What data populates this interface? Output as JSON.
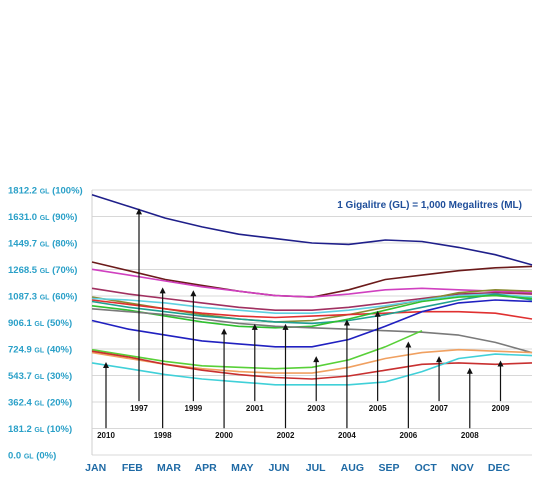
{
  "chart_data": {
    "type": "line",
    "note": "1 Gigalitre (GL) = 1,000 Megalitres (ML)",
    "x_labels": [
      "JAN",
      "FEB",
      "MAR",
      "APR",
      "MAY",
      "JUN",
      "JUL",
      "AUG",
      "SEP",
      "OCT",
      "NOV",
      "DEC"
    ],
    "y_ticks": [
      {
        "value": 0,
        "gl": "0.0",
        "unit": "GL",
        "pct": "(0%)"
      },
      {
        "value": 181.2,
        "gl": "181.2",
        "unit": "GL",
        "pct": "(10%)"
      },
      {
        "value": 362.4,
        "gl": "362.4",
        "unit": "GL",
        "pct": "(20%)"
      },
      {
        "value": 543.7,
        "gl": "543.7",
        "unit": "GL",
        "pct": "(30%)"
      },
      {
        "value": 724.9,
        "gl": "724.9",
        "unit": "GL",
        "pct": "(40%)"
      },
      {
        "value": 906.1,
        "gl": "906.1",
        "unit": "GL",
        "pct": "(50%)"
      },
      {
        "value": 1087.3,
        "gl": "1087.3",
        "unit": "GL",
        "pct": "(60%)"
      },
      {
        "value": 1268.5,
        "gl": "1268.5",
        "unit": "GL",
        "pct": "(70%)"
      },
      {
        "value": 1449.7,
        "gl": "1449.7",
        "unit": "GL",
        "pct": "(80%)"
      },
      {
        "value": 1631.0,
        "gl": "1631.0",
        "unit": "GL",
        "pct": "(90%)"
      },
      {
        "value": 1812.2,
        "gl": "1812.2",
        "unit": "GL",
        "pct": "(100%)"
      }
    ],
    "ylim": [
      0,
      1812.2
    ],
    "xlim": [
      0,
      12
    ],
    "series": [
      {
        "color": "#1f1f8a",
        "points": [
          [
            0,
            1780
          ],
          [
            1,
            1700
          ],
          [
            2,
            1620
          ],
          [
            3,
            1560
          ],
          [
            4,
            1510
          ],
          [
            5,
            1480
          ],
          [
            6,
            1450
          ],
          [
            7,
            1440
          ],
          [
            8,
            1470
          ],
          [
            9,
            1460
          ],
          [
            10,
            1420
          ],
          [
            11,
            1370
          ],
          [
            12,
            1300
          ]
        ]
      },
      {
        "color": "#6b1a1a",
        "points": [
          [
            0,
            1320
          ],
          [
            1,
            1260
          ],
          [
            2,
            1200
          ],
          [
            3,
            1160
          ],
          [
            4,
            1120
          ],
          [
            5,
            1090
          ],
          [
            6,
            1080
          ],
          [
            7,
            1130
          ],
          [
            8,
            1200
          ],
          [
            9,
            1230
          ],
          [
            10,
            1260
          ],
          [
            11,
            1280
          ],
          [
            12,
            1290
          ]
        ]
      },
      {
        "color": "#d040c0",
        "points": [
          [
            0,
            1270
          ],
          [
            1,
            1230
          ],
          [
            2,
            1190
          ],
          [
            3,
            1150
          ],
          [
            4,
            1120
          ],
          [
            5,
            1090
          ],
          [
            6,
            1080
          ],
          [
            7,
            1100
          ],
          [
            8,
            1130
          ],
          [
            9,
            1140
          ],
          [
            10,
            1130
          ],
          [
            11,
            1120
          ],
          [
            12,
            1110
          ]
        ]
      },
      {
        "color": "#a03060",
        "points": [
          [
            0,
            1140
          ],
          [
            1,
            1100
          ],
          [
            2,
            1070
          ],
          [
            3,
            1040
          ],
          [
            4,
            1010
          ],
          [
            5,
            990
          ],
          [
            6,
            990
          ],
          [
            7,
            1010
          ],
          [
            8,
            1040
          ],
          [
            9,
            1070
          ],
          [
            10,
            1100
          ],
          [
            11,
            1110
          ],
          [
            12,
            1100
          ]
        ]
      },
      {
        "color": "#8a8a30",
        "points": [
          [
            0,
            1080
          ],
          [
            1,
            1040
          ],
          [
            2,
            1000
          ],
          [
            3,
            960
          ],
          [
            4,
            930
          ],
          [
            5,
            910
          ],
          [
            6,
            920
          ],
          [
            7,
            960
          ],
          [
            8,
            1010
          ],
          [
            9,
            1060
          ],
          [
            10,
            1110
          ],
          [
            11,
            1130
          ],
          [
            12,
            1120
          ]
        ]
      },
      {
        "color": "#5fd0e0",
        "points": [
          [
            0,
            1070
          ],
          [
            1,
            1060
          ],
          [
            2,
            1040
          ],
          [
            3,
            1010
          ],
          [
            4,
            990
          ],
          [
            5,
            970
          ],
          [
            6,
            970
          ],
          [
            7,
            990
          ],
          [
            8,
            1020
          ],
          [
            9,
            1060
          ],
          [
            10,
            1090
          ],
          [
            11,
            1100
          ],
          [
            12,
            1080
          ]
        ]
      },
      {
        "color": "#e03030",
        "points": [
          [
            0,
            1060
          ],
          [
            1,
            1030
          ],
          [
            2,
            1000
          ],
          [
            3,
            970
          ],
          [
            4,
            950
          ],
          [
            5,
            940
          ],
          [
            6,
            950
          ],
          [
            7,
            960
          ],
          [
            8,
            970
          ],
          [
            9,
            980
          ],
          [
            10,
            980
          ],
          [
            11,
            970
          ],
          [
            12,
            930
          ]
        ]
      },
      {
        "color": "#20a090",
        "points": [
          [
            0,
            1050
          ],
          [
            1,
            1010
          ],
          [
            2,
            980
          ],
          [
            3,
            950
          ],
          [
            4,
            930
          ],
          [
            5,
            910
          ],
          [
            6,
            900
          ],
          [
            7,
            920
          ],
          [
            8,
            960
          ],
          [
            9,
            1010
          ],
          [
            10,
            1060
          ],
          [
            11,
            1100
          ],
          [
            12,
            1060
          ]
        ]
      },
      {
        "color": "#30c030",
        "points": [
          [
            0,
            1020
          ],
          [
            1,
            990
          ],
          [
            2,
            950
          ],
          [
            3,
            910
          ],
          [
            4,
            880
          ],
          [
            5,
            870
          ],
          [
            6,
            880
          ],
          [
            7,
            930
          ],
          [
            8,
            990
          ],
          [
            9,
            1050
          ],
          [
            10,
            1080
          ],
          [
            11,
            1090
          ],
          [
            12,
            1070
          ]
        ]
      },
      {
        "color": "#7a7a7a",
        "points": [
          [
            0,
            1000
          ],
          [
            1,
            980
          ],
          [
            2,
            960
          ],
          [
            3,
            930
          ],
          [
            4,
            900
          ],
          [
            5,
            880
          ],
          [
            6,
            870
          ],
          [
            7,
            860
          ],
          [
            8,
            850
          ],
          [
            9,
            840
          ],
          [
            10,
            820
          ],
          [
            11,
            770
          ],
          [
            12,
            700
          ]
        ]
      },
      {
        "color": "#2020c0",
        "points": [
          [
            0,
            920
          ],
          [
            1,
            860
          ],
          [
            2,
            820
          ],
          [
            3,
            780
          ],
          [
            4,
            760
          ],
          [
            5,
            740
          ],
          [
            6,
            740
          ],
          [
            7,
            790
          ],
          [
            8,
            880
          ],
          [
            9,
            980
          ],
          [
            10,
            1040
          ],
          [
            11,
            1060
          ],
          [
            12,
            1050
          ]
        ]
      },
      {
        "color": "#f0a060",
        "points": [
          [
            0,
            700
          ],
          [
            1,
            660
          ],
          [
            2,
            620
          ],
          [
            3,
            590
          ],
          [
            4,
            570
          ],
          [
            5,
            560
          ],
          [
            6,
            560
          ],
          [
            7,
            600
          ],
          [
            8,
            660
          ],
          [
            9,
            700
          ],
          [
            10,
            720
          ],
          [
            11,
            710
          ],
          [
            12,
            700
          ]
        ]
      },
      {
        "color": "#58d038",
        "points": [
          [
            0,
            720
          ],
          [
            1,
            680
          ],
          [
            2,
            640
          ],
          [
            3,
            610
          ],
          [
            4,
            600
          ],
          [
            5,
            590
          ],
          [
            6,
            600
          ],
          [
            7,
            650
          ],
          [
            8,
            740
          ],
          [
            9,
            850
          ]
        ]
      },
      {
        "color": "#c83030",
        "points": [
          [
            0,
            710
          ],
          [
            1,
            670
          ],
          [
            2,
            620
          ],
          [
            3,
            580
          ],
          [
            4,
            550
          ],
          [
            5,
            530
          ],
          [
            6,
            520
          ],
          [
            7,
            540
          ],
          [
            8,
            580
          ],
          [
            9,
            620
          ],
          [
            10,
            630
          ],
          [
            11,
            620
          ],
          [
            12,
            630
          ]
        ]
      },
      {
        "color": "#40d0d8",
        "points": [
          [
            0,
            630
          ],
          [
            1,
            590
          ],
          [
            2,
            550
          ],
          [
            3,
            520
          ],
          [
            4,
            500
          ],
          [
            5,
            480
          ],
          [
            6,
            480
          ],
          [
            7,
            480
          ],
          [
            8,
            500
          ],
          [
            9,
            570
          ],
          [
            10,
            660
          ],
          [
            11,
            690
          ],
          [
            12,
            680
          ]
        ]
      }
    ],
    "year_labels": [
      {
        "year": "1997",
        "x": 1.32,
        "label_y": 300,
        "arrow_top_y": 1700
      },
      {
        "year": "1998",
        "x": 2.3,
        "label_y": 115,
        "arrow_top_y": 1160
      },
      {
        "year": "1999",
        "x": 3.3,
        "label_y": 300,
        "arrow_top_y": 1140
      },
      {
        "year": "2000",
        "x": 4.3,
        "label_y": 115,
        "arrow_top_y": 880
      },
      {
        "year": "2001",
        "x": 5.3,
        "label_y": 300,
        "arrow_top_y": 910
      },
      {
        "year": "2002",
        "x": 6.3,
        "label_y": 115,
        "arrow_top_y": 910
      },
      {
        "year": "2003",
        "x": 7.3,
        "label_y": 300,
        "arrow_top_y": 690
      },
      {
        "year": "2004",
        "x": 8.3,
        "label_y": 115,
        "arrow_top_y": 940
      },
      {
        "year": "2005",
        "x": 9.3,
        "label_y": 300,
        "arrow_top_y": 1000
      },
      {
        "year": "2006",
        "x": 10.3,
        "label_y": 115,
        "arrow_top_y": 790
      },
      {
        "year": "2007",
        "x": 11.3,
        "label_y": 300,
        "arrow_top_y": 690
      },
      {
        "year": "2008",
        "x": 12.3,
        "label_y": 115,
        "arrow_top_y": 610
      },
      {
        "year": "2009",
        "x": 13.3,
        "label_y": 300,
        "arrow_top_y": 660
      },
      {
        "year": "2010",
        "x": 0.38,
        "label_y": 115,
        "arrow_top_y": 650
      }
    ]
  }
}
